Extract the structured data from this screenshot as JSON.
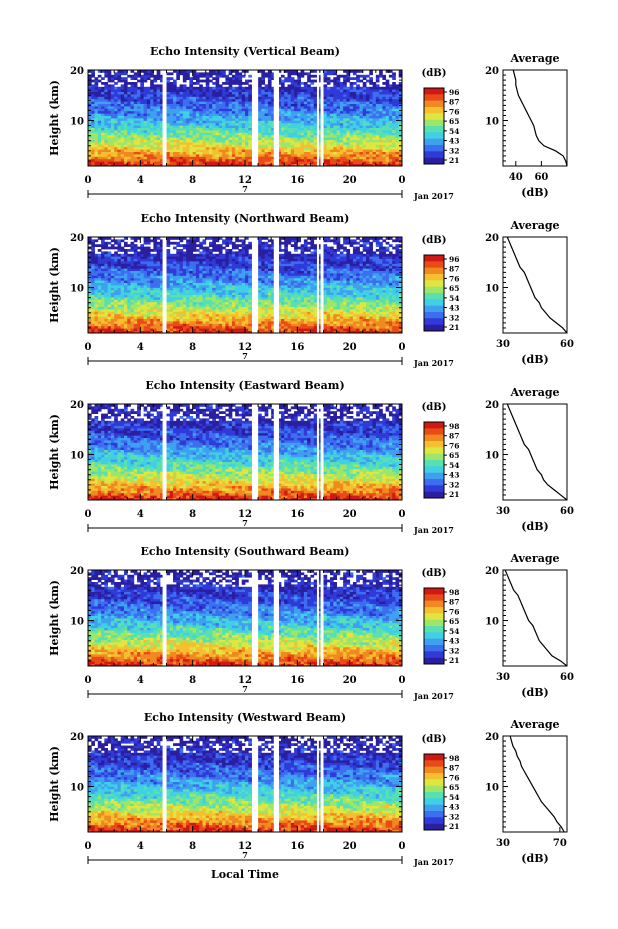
{
  "figure": {
    "xlabel": "Local Time",
    "date_label": "Jan 2017",
    "date_tick_label": "7",
    "x_ticks": [
      "0",
      "4",
      "8",
      "12",
      "16",
      "20",
      "0"
    ],
    "ylabel": "Height (km)",
    "y_ticks": [
      "20",
      "10"
    ],
    "colorbar_unit": "(dB)",
    "colorbar_colors": [
      "#2a1fa0",
      "#2f3ad8",
      "#3c6ef0",
      "#3fa0f0",
      "#3fd0e6",
      "#58e0b0",
      "#9ee66a",
      "#e0e640",
      "#f4c030",
      "#f08a20",
      "#e84a18",
      "#d01814"
    ],
    "profile_title": "Average",
    "profile_xlabel": "(dB)",
    "profile_yticks": [
      "20",
      "10"
    ]
  },
  "chart_data": [
    {
      "type": "heatmap",
      "title": "Echo Intensity (Vertical Beam)",
      "xlim": [
        0,
        24
      ],
      "ylim": [
        1,
        20
      ],
      "colorbar_ticks": [
        "96",
        "87",
        "76",
        "65",
        "54",
        "43",
        "32",
        "21"
      ],
      "data_gaps_hours": [
        [
          5.7,
          5.9
        ],
        [
          12.6,
          13.0
        ],
        [
          14.2,
          14.6
        ],
        [
          17.5,
          17.6
        ],
        [
          17.8,
          17.9
        ]
      ],
      "profile": {
        "type": "line",
        "xlim": [
          30,
          80
        ],
        "xticks": [
          "40",
          "60"
        ],
        "ylim": [
          1,
          20
        ],
        "x": [
          80,
          79,
          77,
          71,
          62,
          58,
          56,
          55,
          54,
          52,
          50,
          48,
          46,
          44,
          42,
          41,
          40,
          40,
          39,
          38
        ],
        "y": [
          1,
          2,
          3,
          4,
          5,
          6,
          7,
          8,
          9,
          10,
          11,
          12,
          13,
          14,
          15,
          16,
          17,
          18,
          19,
          20
        ]
      }
    },
    {
      "type": "heatmap",
      "title": "Echo Intensity (Northward Beam)",
      "xlim": [
        0,
        24
      ],
      "ylim": [
        1,
        20
      ],
      "colorbar_ticks": [
        "96",
        "87",
        "76",
        "65",
        "54",
        "43",
        "32",
        "21"
      ],
      "data_gaps_hours": [
        [
          5.7,
          5.9
        ],
        [
          12.6,
          13.0
        ],
        [
          14.2,
          14.6
        ],
        [
          17.5,
          17.6
        ],
        [
          17.8,
          17.9
        ]
      ],
      "profile": {
        "type": "line",
        "xlim": [
          30,
          60
        ],
        "xticks": [
          "30",
          "60"
        ],
        "ylim": [
          1,
          20
        ],
        "x": [
          60,
          58,
          55,
          52,
          50,
          48,
          47,
          45,
          44,
          43,
          42,
          41,
          40,
          38,
          37,
          36,
          35,
          34,
          33,
          32
        ],
        "y": [
          1,
          2,
          3,
          4,
          5,
          6,
          7,
          8,
          9,
          10,
          11,
          12,
          13,
          14,
          15,
          16,
          17,
          18,
          19,
          20
        ]
      }
    },
    {
      "type": "heatmap",
      "title": "Echo Intensity (Eastward Beam)",
      "xlim": [
        0,
        24
      ],
      "ylim": [
        1,
        20
      ],
      "colorbar_ticks": [
        "98",
        "87",
        "76",
        "65",
        "54",
        "43",
        "32",
        "21"
      ],
      "data_gaps_hours": [
        [
          5.7,
          5.9
        ],
        [
          12.6,
          13.0
        ],
        [
          14.2,
          14.6
        ],
        [
          17.5,
          17.6
        ],
        [
          17.8,
          17.9
        ]
      ],
      "profile": {
        "type": "line",
        "xlim": [
          30,
          60
        ],
        "xticks": [
          "30",
          "60"
        ],
        "ylim": [
          1,
          20
        ],
        "x": [
          60,
          57,
          54,
          51,
          49,
          48,
          46,
          45,
          44,
          43,
          42,
          40,
          39,
          38,
          37,
          36,
          35,
          34,
          33,
          32
        ],
        "y": [
          1,
          2,
          3,
          4,
          5,
          6,
          7,
          8,
          9,
          10,
          11,
          12,
          13,
          14,
          15,
          16,
          17,
          18,
          19,
          20
        ]
      }
    },
    {
      "type": "heatmap",
      "title": "Echo Intensity (Southward Beam)",
      "xlim": [
        0,
        24
      ],
      "ylim": [
        1,
        20
      ],
      "colorbar_ticks": [
        "98",
        "87",
        "76",
        "65",
        "54",
        "43",
        "32",
        "21"
      ],
      "data_gaps_hours": [
        [
          5.7,
          5.9
        ],
        [
          12.6,
          13.0
        ],
        [
          14.2,
          14.6
        ],
        [
          17.5,
          17.6
        ],
        [
          17.8,
          17.9
        ]
      ],
      "profile": {
        "type": "line",
        "xlim": [
          30,
          60
        ],
        "xticks": [
          "30",
          "60"
        ],
        "ylim": [
          1,
          20
        ],
        "x": [
          60,
          57,
          53,
          51,
          49,
          47,
          46,
          45,
          44,
          42,
          41,
          40,
          39,
          38,
          37,
          35,
          34,
          33,
          32,
          31
        ],
        "y": [
          1,
          2,
          3,
          4,
          5,
          6,
          7,
          8,
          9,
          10,
          11,
          12,
          13,
          14,
          15,
          16,
          17,
          18,
          19,
          20
        ]
      }
    },
    {
      "type": "heatmap",
      "title": "Echo Intensity (Westward Beam)",
      "xlim": [
        0,
        24
      ],
      "ylim": [
        1,
        20
      ],
      "colorbar_ticks": [
        "98",
        "87",
        "76",
        "65",
        "54",
        "43",
        "32",
        "21"
      ],
      "data_gaps_hours": [
        [
          5.7,
          5.9
        ],
        [
          12.6,
          13.0
        ],
        [
          14.2,
          14.6
        ],
        [
          17.5,
          17.6
        ],
        [
          17.8,
          17.9
        ]
      ],
      "profile": {
        "type": "line",
        "xlim": [
          30,
          75
        ],
        "xticks": [
          "30",
          "70"
        ],
        "ylim": [
          1,
          20
        ],
        "x": [
          73,
          71,
          68,
          66,
          63,
          60,
          57,
          55,
          53,
          51,
          49,
          47,
          45,
          43,
          42,
          40,
          39,
          37,
          36,
          35
        ],
        "y": [
          1,
          2,
          3,
          4,
          5,
          6,
          7,
          8,
          9,
          10,
          11,
          12,
          13,
          14,
          15,
          16,
          17,
          18,
          19,
          20
        ]
      }
    }
  ]
}
